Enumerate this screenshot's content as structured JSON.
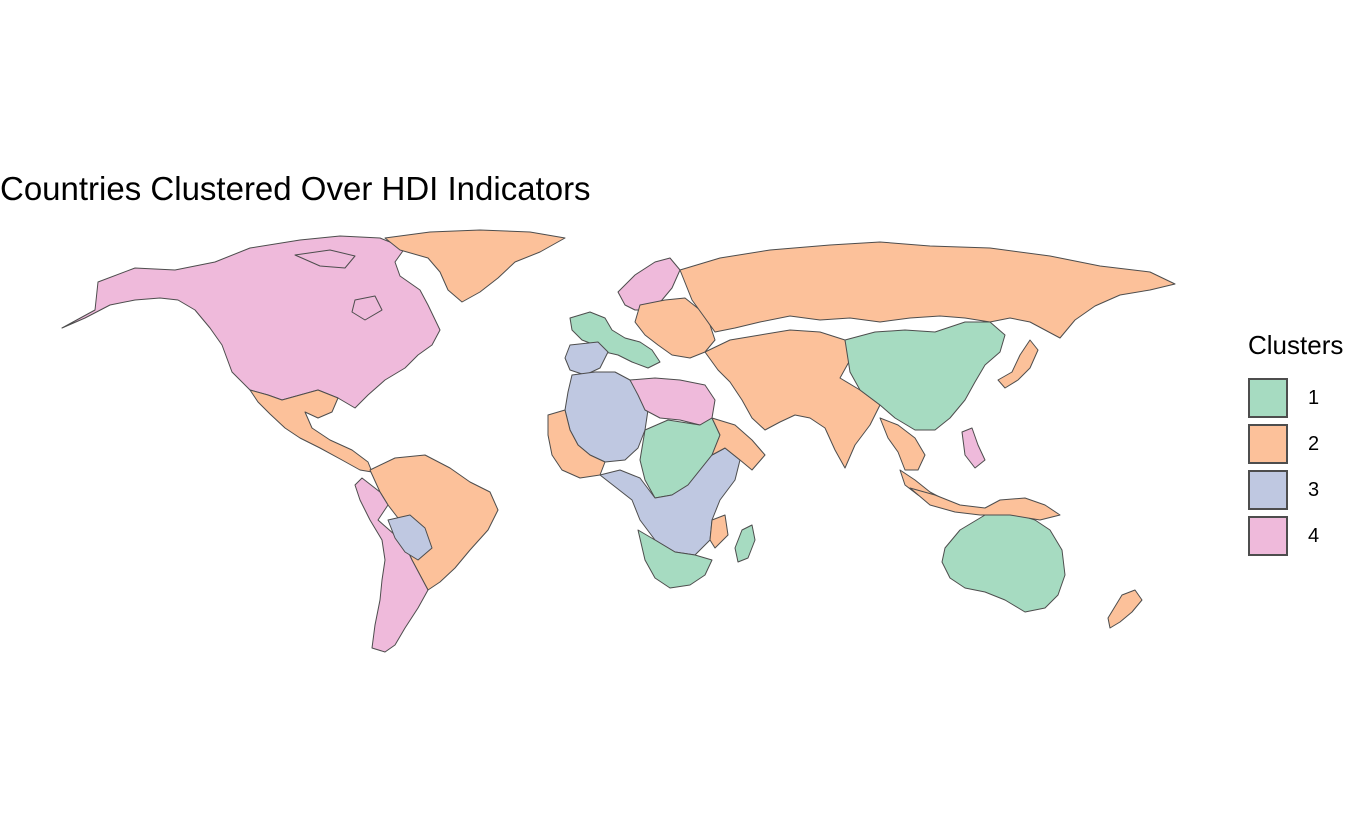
{
  "title": "Countries Clustered Over HDI Indicators",
  "legend": {
    "title": "Clusters",
    "items": [
      {
        "label": "1",
        "color": "#a6dbc1"
      },
      {
        "label": "2",
        "color": "#fcc19a"
      },
      {
        "label": "3",
        "color": "#bfc8e1"
      },
      {
        "label": "4",
        "color": "#efbadb"
      }
    ]
  },
  "colors": {
    "cluster_1": "#a6dbc1",
    "cluster_2": "#fcc19a",
    "cluster_3": "#bfc8e1",
    "cluster_4": "#efbadb",
    "border": "#4d4d4d"
  },
  "regions": [
    {
      "name": "north-america",
      "cluster": 4
    },
    {
      "name": "greenland",
      "cluster": 2
    },
    {
      "name": "mexico-central-america",
      "cluster": 2
    },
    {
      "name": "south-america-east",
      "cluster": 2
    },
    {
      "name": "south-america-west",
      "cluster": 4
    },
    {
      "name": "bolivia-paraguay",
      "cluster": 3
    },
    {
      "name": "western-europe",
      "cluster": 1
    },
    {
      "name": "iberia",
      "cluster": 3
    },
    {
      "name": "scandinavia",
      "cluster": 4
    },
    {
      "name": "eastern-europe",
      "cluster": 2
    },
    {
      "name": "russia",
      "cluster": 2
    },
    {
      "name": "middle-east-central-asia",
      "cluster": 2
    },
    {
      "name": "china",
      "cluster": 1
    },
    {
      "name": "japan",
      "cluster": 2
    },
    {
      "name": "southeast-asia",
      "cluster": 2
    },
    {
      "name": "north-africa-west",
      "cluster": 3
    },
    {
      "name": "libya-egypt",
      "cluster": 4
    },
    {
      "name": "west-africa",
      "cluster": 2
    },
    {
      "name": "sahel-central-africa",
      "cluster": 1
    },
    {
      "name": "central-east-africa",
      "cluster": 3
    },
    {
      "name": "east-africa",
      "cluster": 2
    },
    {
      "name": "southern-africa",
      "cluster": 1
    },
    {
      "name": "madagascar",
      "cluster": 1
    },
    {
      "name": "australia",
      "cluster": 1
    },
    {
      "name": "new-zealand",
      "cluster": 2
    },
    {
      "name": "indonesia-png",
      "cluster": 2
    },
    {
      "name": "philippines",
      "cluster": 4
    }
  ]
}
